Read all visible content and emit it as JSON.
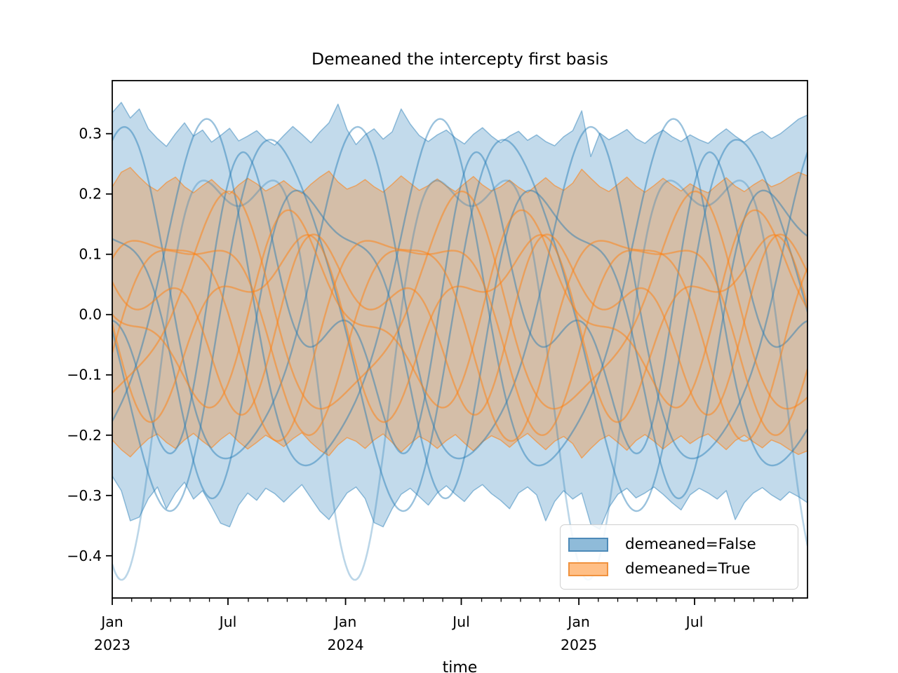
{
  "figure": {
    "title": "Demeaned the intercepty first basis",
    "xlabel": "time",
    "background_color": "#ffffff"
  },
  "legend": {
    "items": [
      {
        "label": "demeaned=False",
        "swatch_fill": "#8fbbd9",
        "swatch_border": "#4d8ab8"
      },
      {
        "label": "demeaned=True",
        "swatch_fill": "#ffbf86",
        "swatch_border": "#f0923e"
      }
    ]
  },
  "axes": {
    "y_ticks": [
      {
        "label": "0.3",
        "v": 0.3
      },
      {
        "label": "0.2",
        "v": 0.2
      },
      {
        "label": "0.1",
        "v": 0.1
      },
      {
        "label": "0.0",
        "v": 0.0
      },
      {
        "label": "−0.1",
        "v": -0.1
      },
      {
        "label": "−0.2",
        "v": -0.2
      },
      {
        "label": "−0.3",
        "v": -0.3
      },
      {
        "label": "−0.4",
        "v": -0.4
      }
    ],
    "x_major_ticks": [
      {
        "line1": "Jan",
        "line2": "2023",
        "t": 0
      },
      {
        "line1": "Jul",
        "line2": "",
        "t": 0.496
      },
      {
        "line1": "Jan",
        "line2": "2024",
        "t": 1.0
      },
      {
        "line1": "Jul",
        "line2": "",
        "t": 1.496
      },
      {
        "line1": "Jan",
        "line2": "2025",
        "t": 2.0
      },
      {
        "line1": "Jul",
        "line2": "",
        "t": 2.496
      }
    ],
    "x_minor_interval_months": 1
  },
  "chart_data": {
    "type": "line",
    "title": "Demeaned the intercepty first basis",
    "xlabel": "time",
    "x_unit": "years since 2023-01-01",
    "xlim": [
      0,
      2.98
    ],
    "ylim": [
      -0.47,
      0.388
    ],
    "grid": false,
    "legend_position": "lower right",
    "line_model": "y(t) = a1*sin(2*pi*t + p1) + a2*sin(4*pi*t + p2), t in years",
    "series": [
      {
        "name": "demeaned=False",
        "color": "#1f77b4",
        "band_fill_opacity": 0.27,
        "band_edge_opacity": 0.45,
        "band": {
          "upper": [
            0.335,
            0.352,
            0.326,
            0.341,
            0.308,
            0.292,
            0.279,
            0.3,
            0.318,
            0.296,
            0.306,
            0.286,
            0.297,
            0.309,
            0.288,
            0.296,
            0.305,
            0.29,
            0.281,
            0.297,
            0.312,
            0.299,
            0.285,
            0.303,
            0.318,
            0.349,
            0.307,
            0.282,
            0.298,
            0.308,
            0.291,
            0.303,
            0.341,
            0.316,
            0.297,
            0.287,
            0.298,
            0.306,
            0.293,
            0.283,
            0.299,
            0.31,
            0.296,
            0.285,
            0.296,
            0.304,
            0.289,
            0.298,
            0.287,
            0.28,
            0.295,
            0.305,
            0.338,
            0.262,
            0.301,
            0.29,
            0.298,
            0.307,
            0.292,
            0.284,
            0.297,
            0.306,
            0.295,
            0.287,
            0.298,
            0.29,
            0.284,
            0.297,
            0.308,
            0.296,
            0.286,
            0.297,
            0.304,
            0.292,
            0.3,
            0.312,
            0.324,
            0.331
          ],
          "lower": [
            -0.268,
            -0.292,
            -0.342,
            -0.336,
            -0.305,
            -0.286,
            -0.322,
            -0.296,
            -0.278,
            -0.306,
            -0.292,
            -0.318,
            -0.346,
            -0.352,
            -0.316,
            -0.296,
            -0.308,
            -0.288,
            -0.297,
            -0.311,
            -0.296,
            -0.282,
            -0.304,
            -0.326,
            -0.34,
            -0.318,
            -0.296,
            -0.286,
            -0.305,
            -0.345,
            -0.352,
            -0.322,
            -0.298,
            -0.288,
            -0.302,
            -0.316,
            -0.296,
            -0.284,
            -0.298,
            -0.31,
            -0.292,
            -0.282,
            -0.297,
            -0.308,
            -0.322,
            -0.296,
            -0.286,
            -0.299,
            -0.342,
            -0.31,
            -0.292,
            -0.306,
            -0.296,
            -0.348,
            -0.356,
            -0.32,
            -0.298,
            -0.288,
            -0.304,
            -0.296,
            -0.286,
            -0.298,
            -0.312,
            -0.324,
            -0.299,
            -0.288,
            -0.296,
            -0.306,
            -0.292,
            -0.34,
            -0.312,
            -0.296,
            -0.287,
            -0.299,
            -0.308,
            -0.294,
            -0.302,
            -0.312
          ]
        },
        "lines": [
          {
            "a1": 0.31,
            "p1": -1.822,
            "a2": 0.13,
            "p2": -2.073,
            "opacity": 0.3,
            "width": 2.6
          },
          {
            "a1": 0.27,
            "p1": 1.35,
            "a2": 0.045,
            "p2": 0.6,
            "opacity": 0.45,
            "width": 2.4
          },
          {
            "a1": 0.28,
            "p1": -0.85,
            "a2": 0.05,
            "p2": 2.4,
            "opacity": 0.45,
            "width": 2.4
          },
          {
            "a1": 0.3,
            "p1": -2.95,
            "a2": 0.04,
            "p2": 0.9,
            "opacity": 0.45,
            "width": 2.4
          },
          {
            "a1": 0.17,
            "p1": 3.9,
            "a2": 0.12,
            "p2": 1.1,
            "opacity": 0.45,
            "width": 2.4
          },
          {
            "a1": 0.23,
            "p1": -4.1,
            "a2": 0.08,
            "p2": -0.9,
            "opacity": 0.45,
            "width": 2.4
          }
        ]
      },
      {
        "name": "demeaned=True",
        "color": "#ff7f0e",
        "band_fill_opacity": 0.3,
        "band_edge_opacity": 0.55,
        "band": {
          "upper": [
            0.212,
            0.236,
            0.244,
            0.228,
            0.214,
            0.205,
            0.219,
            0.228,
            0.212,
            0.202,
            0.214,
            0.224,
            0.21,
            0.2,
            0.215,
            0.226,
            0.217,
            0.205,
            0.213,
            0.222,
            0.21,
            0.201,
            0.216,
            0.228,
            0.238,
            0.22,
            0.208,
            0.214,
            0.224,
            0.212,
            0.203,
            0.216,
            0.23,
            0.218,
            0.206,
            0.214,
            0.225,
            0.213,
            0.204,
            0.217,
            0.229,
            0.215,
            0.205,
            0.212,
            0.223,
            0.211,
            0.202,
            0.215,
            0.227,
            0.214,
            0.206,
            0.218,
            0.241,
            0.226,
            0.212,
            0.204,
            0.216,
            0.228,
            0.213,
            0.203,
            0.214,
            0.226,
            0.215,
            0.205,
            0.217,
            0.208,
            0.202,
            0.215,
            0.227,
            0.213,
            0.204,
            0.215,
            0.224,
            0.212,
            0.218,
            0.228,
            0.236,
            0.23
          ],
          "lower": [
            -0.208,
            -0.224,
            -0.236,
            -0.22,
            -0.206,
            -0.198,
            -0.212,
            -0.222,
            -0.208,
            -0.197,
            -0.21,
            -0.221,
            -0.207,
            -0.196,
            -0.211,
            -0.223,
            -0.212,
            -0.2,
            -0.209,
            -0.219,
            -0.206,
            -0.196,
            -0.212,
            -0.225,
            -0.234,
            -0.216,
            -0.204,
            -0.21,
            -0.222,
            -0.208,
            -0.198,
            -0.212,
            -0.228,
            -0.214,
            -0.202,
            -0.21,
            -0.222,
            -0.209,
            -0.199,
            -0.213,
            -0.226,
            -0.211,
            -0.201,
            -0.208,
            -0.22,
            -0.207,
            -0.197,
            -0.211,
            -0.224,
            -0.21,
            -0.202,
            -0.214,
            -0.238,
            -0.222,
            -0.208,
            -0.2,
            -0.212,
            -0.225,
            -0.209,
            -0.199,
            -0.21,
            -0.223,
            -0.211,
            -0.201,
            -0.214,
            -0.204,
            -0.198,
            -0.211,
            -0.224,
            -0.209,
            -0.2,
            -0.211,
            -0.221,
            -0.208,
            -0.214,
            -0.224,
            -0.232,
            -0.226
          ]
        },
        "lines": [
          {
            "a1": 0.16,
            "p1": 0.3,
            "a2": 0.05,
            "p2": 2.0,
            "opacity": 0.5,
            "width": 2.4
          },
          {
            "a1": 0.13,
            "p1": 2.7,
            "a2": 0.06,
            "p2": 5.1,
            "opacity": 0.5,
            "width": 2.4
          },
          {
            "a1": 0.17,
            "p1": 4.9,
            "a2": 0.04,
            "p2": 1.2,
            "opacity": 0.5,
            "width": 2.4
          },
          {
            "a1": 0.1,
            "p1": 1.6,
            "a2": 0.075,
            "p2": 3.8,
            "opacity": 0.5,
            "width": 2.4
          },
          {
            "a1": 0.15,
            "p1": 5.7,
            "a2": 0.05,
            "p2": 0.4,
            "opacity": 0.5,
            "width": 2.4
          },
          {
            "a1": 0.12,
            "p1": 3.4,
            "a2": 0.065,
            "p2": 2.9,
            "opacity": 0.5,
            "width": 2.4
          }
        ]
      }
    ]
  }
}
